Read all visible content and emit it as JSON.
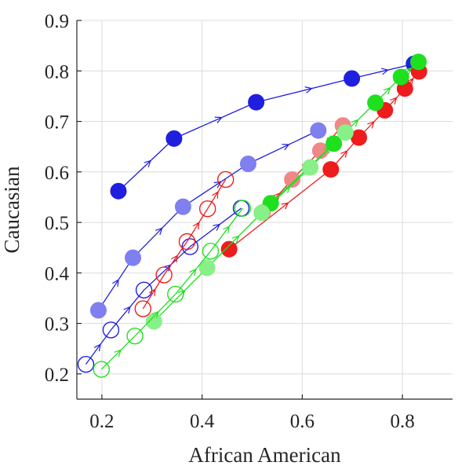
{
  "chart_data": {
    "type": "scatter",
    "title": "",
    "xlabel": "African American",
    "ylabel": "Caucasian",
    "xlim": [
      0.15,
      0.9
    ],
    "ylim": [
      0.15,
      0.9
    ],
    "xticks": [
      0.2,
      0.4,
      0.6,
      0.8
    ],
    "xtick_labels": [
      "0.2",
      "0.4",
      "0.6",
      "0.8"
    ],
    "yticks": [
      0.2,
      0.3,
      0.4,
      0.5,
      0.6,
      0.7,
      0.8,
      0.9
    ],
    "ytick_labels": [
      "0.2",
      "0.3",
      "0.4",
      "0.5",
      "0.6",
      "0.7",
      "0.8",
      "0.9"
    ],
    "grid": true,
    "legend": "none",
    "colors": {
      "blue": "#1f1fe0",
      "blue_light": "#7f7ff0",
      "red": "#ee1c1c",
      "red_light": "#f08888",
      "green": "#1ee01e",
      "green_light": "#88f088"
    },
    "series": [
      {
        "color": "blue",
        "marker": "filled",
        "alpha": 1.0,
        "x": [
          0.233,
          0.344,
          0.508,
          0.699,
          0.823
        ],
        "y": [
          0.562,
          0.666,
          0.738,
          0.785,
          0.814
        ]
      },
      {
        "color": "blue",
        "marker": "filled",
        "alpha": 0.5,
        "x": [
          0.193,
          0.262,
          0.362,
          0.492,
          0.632
        ],
        "y": [
          0.326,
          0.43,
          0.531,
          0.616,
          0.682
        ]
      },
      {
        "color": "blue",
        "marker": "open",
        "x": [
          0.168,
          0.218,
          0.284,
          0.376,
          0.478
        ],
        "y": [
          0.219,
          0.287,
          0.366,
          0.452,
          0.528
        ]
      },
      {
        "color": "red",
        "marker": "filled",
        "alpha": 1.0,
        "x": [
          0.454,
          0.657,
          0.713,
          0.765,
          0.805,
          0.833
        ],
        "y": [
          0.447,
          0.605,
          0.668,
          0.722,
          0.765,
          0.799
        ]
      },
      {
        "color": "red",
        "marker": "filled",
        "alpha": 0.5,
        "x": [
          0.521,
          0.58,
          0.636,
          0.681
        ],
        "y": [
          0.52,
          0.585,
          0.642,
          0.692
        ]
      },
      {
        "color": "red",
        "marker": "open",
        "x": [
          0.282,
          0.324,
          0.37,
          0.411,
          0.447
        ],
        "y": [
          0.329,
          0.396,
          0.462,
          0.527,
          0.585
        ]
      },
      {
        "color": "green",
        "marker": "filled",
        "alpha": 1.0,
        "x": [
          0.537,
          0.663,
          0.746,
          0.797,
          0.832
        ],
        "y": [
          0.538,
          0.656,
          0.737,
          0.788,
          0.818
        ]
      },
      {
        "color": "green",
        "marker": "filled",
        "alpha": 0.5,
        "x": [
          0.304,
          0.41,
          0.519,
          0.616,
          0.686
        ],
        "y": [
          0.304,
          0.41,
          0.519,
          0.609,
          0.678
        ]
      },
      {
        "color": "green",
        "marker": "open",
        "x": [
          0.199,
          0.266,
          0.347,
          0.417,
          0.481
        ],
        "y": [
          0.209,
          0.275,
          0.358,
          0.443,
          0.528
        ]
      }
    ]
  }
}
